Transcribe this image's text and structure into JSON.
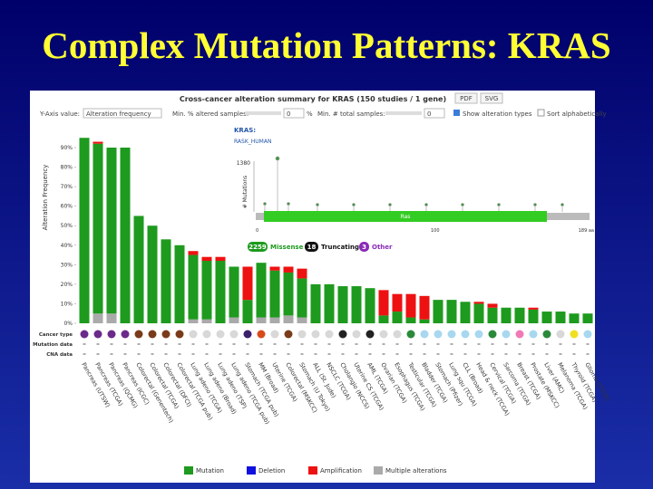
{
  "slide_title": "Complex Mutation Patterns: KRAS",
  "ui": {
    "panel_title": "Cross-cancer alteration summary for KRAS (150 studies / 1 gene)",
    "pdf": "PDF",
    "svg": "SVG",
    "yaxis_value_label": "Y-Axis value:",
    "yaxis_value": "Alteration frequency",
    "min_pct_label": "Min. % altered samples:",
    "min_pct_value": "0",
    "pct_unit": "%",
    "min_total_label": "Min. # total samples:",
    "min_total_value": "0",
    "show_types": "Show alteration types",
    "sort_alpha": "Sort alphabetically",
    "gene": "KRAS:",
    "protein": "RASK_HUMAN",
    "mutations_axis": "# Mutations",
    "mutations_max": "1380",
    "aa_ticks": [
      "0",
      "100",
      "189 aa"
    ],
    "domain": "Ras",
    "missense_count": "2259",
    "missense": "Missense",
    "truncating_count": "18",
    "truncating": "Truncating",
    "other_count": "3",
    "other": "Other",
    "row_cancer": "Cancer type",
    "row_mutation": "Mutation data",
    "row_cna": "CNA data"
  },
  "chart_data": {
    "type": "bar",
    "stacked": true,
    "y_label": "Alteration Frequency",
    "ylim": [
      0,
      90
    ],
    "yticks": [
      {
        "value": 0,
        "label": "0%"
      },
      {
        "value": 10,
        "label": "10%"
      },
      {
        "value": 20,
        "label": "20%"
      },
      {
        "value": 30,
        "label": "30%"
      },
      {
        "value": 40,
        "label": "40%"
      },
      {
        "value": 50,
        "label": "50%"
      },
      {
        "value": 60,
        "label": "60%"
      },
      {
        "value": 70,
        "label": "70%"
      },
      {
        "value": 80,
        "label": "80%"
      },
      {
        "value": 90,
        "label": "90%"
      }
    ],
    "grid": false,
    "categories": [
      "Pancreas (UTSW)",
      "Pancreas (TCGA)",
      "Pancreas (QCMG)",
      "Pancreas (ICGC)",
      "Colorectal (Genentech)",
      "Colorectal (TCGA)",
      "Colorectal (DFCI)",
      "Colorectal (TCGA pub)",
      "Lung adeno (TCGA)",
      "Lung adeno (Broad)",
      "Lung adeno (TSP)",
      "Lung adeno (TCGA pub)",
      "Stomach (TCGA pub)",
      "MM (Broad)",
      "Uterine (TCGA)",
      "Colorectal (MSKCC)",
      "Stomach (U Tokyo)",
      "ALL (St. Jude)",
      "NSCLC (TCGA)",
      "Cholangio (NCCS)",
      "Uterine CS (TCGA)",
      "AML (TCGA)",
      "Ovarian (TCGA)",
      "Esophagus (TCGA)",
      "Testicular (TCGA)",
      "Bladder (TCGA)",
      "Stomach (Pfizer)",
      "Lung squ (TCGA)",
      "CLL (Broad)",
      "Head & neck (TCGA)",
      "Cervical (TCGA)",
      "Sarcoma (TCGA)",
      "Breast (TCGA)",
      "Prostate (MSKCC)",
      "Liver (AMC)",
      "Melanoma (TCGA)",
      "Thyroid (TCGA)",
      "Glioma (TCGA)"
    ],
    "cancer_type_colors": [
      "#6b2a8a",
      "#6b2a8a",
      "#6b2a8a",
      "#6b2a8a",
      "#7a3b1a",
      "#7a3b1a",
      "#7a3b1a",
      "#7a3b1a",
      "#d8d8d8",
      "#d8d8d8",
      "#d8d8d8",
      "#d8d8d8",
      "#3a1f6b",
      "#d84a1a",
      "#d8d8d8",
      "#7a3b1a",
      "#d8d8d8",
      "#d8d8d8",
      "#d8d8d8",
      "#222222",
      "#d8d8d8",
      "#222222",
      "#d8d8d8",
      "#d8d8d8",
      "#2a8a3a",
      "#a8d8f0",
      "#a8d8f0",
      "#a8d8f0",
      "#a8d8f0",
      "#a8d8f0",
      "#2a8a3a",
      "#a8d8f0",
      "#f07ab8",
      "#a8d8f0",
      "#2a8a3a",
      "#d8d8d8",
      "#f0e020",
      "#a8d8f0"
    ],
    "series": [
      {
        "name": "Mutation",
        "color": "#1e9a1e",
        "values": [
          95,
          87,
          85,
          90,
          55,
          50,
          43,
          40,
          33,
          30,
          32,
          26,
          12,
          28,
          24,
          22,
          20,
          20,
          20,
          19,
          19,
          18,
          4,
          6,
          3,
          2,
          12,
          12,
          11,
          10,
          8,
          8,
          8,
          7,
          6,
          6,
          5,
          5
        ]
      },
      {
        "name": "Deletion",
        "color": "#1010e0",
        "values": [
          0,
          0,
          0,
          0,
          0,
          0,
          0,
          0,
          0,
          0,
          0,
          0,
          0,
          0,
          0,
          0,
          0,
          0,
          0,
          0,
          0,
          0,
          0,
          0,
          0,
          0,
          0,
          0,
          0,
          0,
          0,
          0,
          0,
          0,
          0,
          0,
          0,
          0
        ]
      },
      {
        "name": "Amplification",
        "color": "#ee1111",
        "values": [
          0,
          1,
          0,
          0,
          0,
          0,
          0,
          0,
          2,
          2,
          2,
          0,
          17,
          0,
          2,
          3,
          5,
          0,
          0,
          0,
          0,
          0,
          13,
          9,
          12,
          12,
          0,
          0,
          0,
          1,
          2,
          0,
          0,
          1,
          0,
          0,
          0,
          0
        ]
      },
      {
        "name": "Multiple alterations",
        "color": "#aaaaaa",
        "values": [
          0,
          5,
          5,
          0,
          0,
          0,
          0,
          0,
          2,
          2,
          0,
          3,
          0,
          3,
          3,
          4,
          3,
          0,
          0,
          0,
          0,
          0,
          0,
          0,
          0,
          0,
          0,
          0,
          0,
          0,
          0,
          0,
          0,
          0,
          0,
          0,
          0,
          0
        ]
      }
    ],
    "stack_order": [
      "Multiple alterations",
      "Mutation",
      "Deletion",
      "Amplification"
    ]
  }
}
